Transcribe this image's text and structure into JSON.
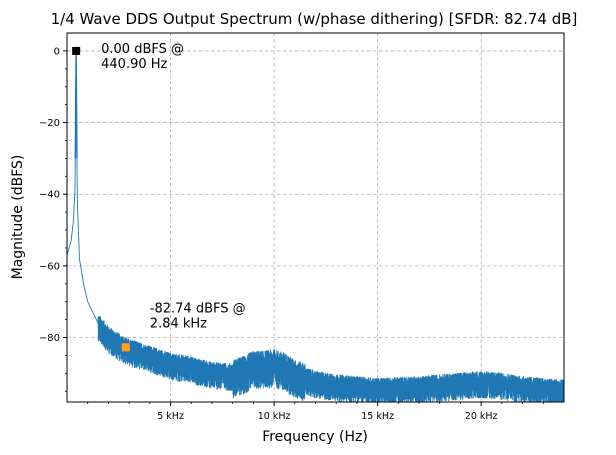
{
  "chart_data": {
    "type": "line",
    "title": "1/4 Wave DDS Output Spectrum (w/phase dithering) [SFDR: 82.74 dB]",
    "xlabel": "Frequency (Hz)",
    "ylabel": "Magnitude (dBFS)",
    "xlim": [
      0,
      24000
    ],
    "ylim": [
      -98,
      5
    ],
    "x_ticks": [
      5000,
      10000,
      15000,
      20000
    ],
    "x_tick_labels": [
      "5 kHz",
      "10 kHz",
      "15 kHz",
      "20 kHz"
    ],
    "y_ticks": [
      0,
      -20,
      -40,
      -60,
      -80
    ],
    "y_tick_labels": [
      "0",
      "−20",
      "−40",
      "−60",
      "−80"
    ],
    "grid": true,
    "line_color": "#1f77b4",
    "spectrum_envelope": {
      "x": [
        0,
        100,
        200,
        300,
        380,
        400,
        420,
        440.9,
        460,
        480,
        500,
        600,
        800,
        1000,
        1500,
        2000,
        2500,
        2840,
        3500,
        4000,
        5000,
        6000,
        7000,
        8000,
        8500,
        9000,
        9500,
        10000,
        10500,
        11000,
        12000,
        13000,
        15000,
        17000,
        18000,
        19000,
        20000,
        21000,
        22000,
        23000,
        24000
      ],
      "y": [
        -57,
        -55,
        -53,
        -48,
        -40,
        -30,
        -15,
        0,
        -15,
        -30,
        -42,
        -58,
        -65,
        -70,
        -76,
        -79.5,
        -81.5,
        -82.74,
        -84,
        -85,
        -87,
        -88,
        -89.5,
        -90,
        -89,
        -87.5,
        -87.5,
        -87,
        -88,
        -90,
        -92,
        -93,
        -94,
        -93.5,
        -93,
        -92.5,
        -92,
        -92.5,
        -93.5,
        -94,
        -94.5
      ]
    },
    "markers": [
      {
        "x": 440.9,
        "y": 0.0,
        "color": "#000000",
        "label_line1": "0.00 dBFS @",
        "label_line2": "440.90 Hz"
      },
      {
        "x": 2840,
        "y": -82.74,
        "color": "#ff9f1c",
        "label_line1": "-82.74 dBFS @",
        "label_line2": "2.84 kHz"
      }
    ]
  }
}
